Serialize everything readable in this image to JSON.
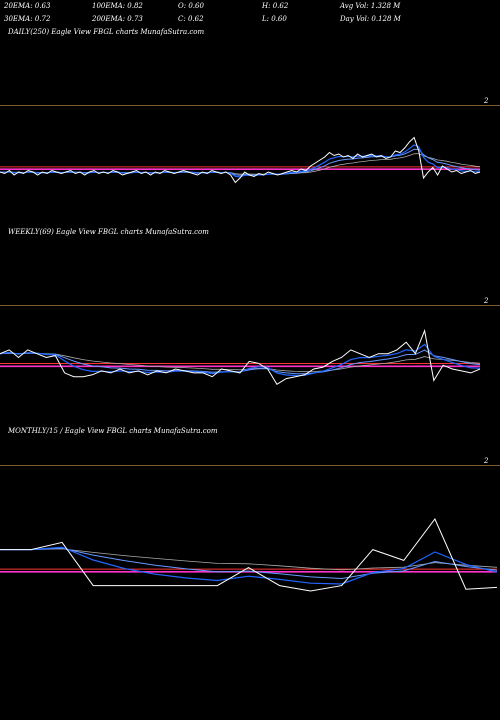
{
  "header": {
    "row1": [
      {
        "label": "20EMA: 0.63"
      },
      {
        "label": "100EMA: 0.82"
      },
      {
        "label": "O: 0.60"
      },
      {
        "label": "H: 0.62"
      },
      {
        "label": "Avg Vol: 1.328  M"
      }
    ],
    "row2": [
      {
        "label": "30EMA: 0.72"
      },
      {
        "label": "200EMA: 0.73"
      },
      {
        "label": "C: 0.62"
      },
      {
        "label": "L: 0.60"
      },
      {
        "label": "Day Vol: 0.128  M"
      }
    ]
  },
  "colors": {
    "price": "#ffffff",
    "ema_fast": "#2266ff",
    "ema_slow": "#6699ff",
    "ema_gray": "#aaaaaa",
    "ema_magenta": "#ff33cc",
    "ema_red": "#ff3333",
    "divider": "#7a5c2e",
    "background": "#000000"
  },
  "panels": [
    {
      "label": "DAILY(250) Eagle  View  FBGL  charts MunafaSutra.com",
      "scale_label": "2"
    },
    {
      "label": "WEEKLY(69) Eagle  View  FBGL  charts MunafaSutra.com",
      "scale_label": "2"
    },
    {
      "label": "MONTHLY/15                                    / Eagle  View  FBGL  charts MunafaSutra.com",
      "scale_label": "2"
    }
  ],
  "chart_data": [
    {
      "type": "line",
      "title": "DAILY(250)",
      "series": [
        {
          "values": [
            0.62,
            0.61,
            0.63,
            0.6,
            0.62,
            0.61,
            0.63,
            0.62,
            0.6,
            0.62,
            0.61,
            0.63,
            0.62,
            0.61,
            0.62,
            0.63,
            0.61,
            0.62,
            0.6,
            0.62,
            0.63,
            0.61,
            0.62,
            0.61,
            0.63,
            0.62,
            0.6,
            0.61,
            0.62,
            0.63,
            0.61,
            0.62,
            0.6,
            0.62,
            0.61,
            0.63,
            0.62,
            0.61,
            0.62,
            0.63,
            0.62,
            0.61,
            0.6,
            0.62,
            0.61,
            0.63,
            0.62,
            0.61,
            0.62,
            0.6,
            0.55,
            0.58,
            0.62,
            0.6,
            0.59,
            0.61,
            0.6,
            0.62,
            0.61,
            0.6,
            0.61,
            0.62,
            0.63,
            0.62,
            0.64,
            0.63,
            0.66,
            0.68,
            0.7,
            0.72,
            0.75,
            0.73,
            0.74,
            0.72,
            0.73,
            0.71,
            0.74,
            0.72,
            0.73,
            0.74,
            0.72,
            0.73,
            0.71,
            0.72,
            0.76,
            0.75,
            0.78,
            0.82,
            0.85,
            0.76,
            0.58,
            0.62,
            0.65,
            0.6,
            0.66,
            0.64,
            0.62,
            0.63,
            0.61,
            0.62,
            0.63,
            0.61,
            0.62
          ]
        }
      ]
    },
    {
      "type": "line",
      "title": "WEEKLY(69)",
      "series": [
        {
          "values": [
            0.7,
            0.72,
            0.68,
            0.72,
            0.7,
            0.68,
            0.69,
            0.6,
            0.58,
            0.58,
            0.59,
            0.61,
            0.6,
            0.62,
            0.6,
            0.61,
            0.59,
            0.61,
            0.6,
            0.62,
            0.61,
            0.6,
            0.6,
            0.58,
            0.62,
            0.61,
            0.6,
            0.66,
            0.65,
            0.62,
            0.54,
            0.57,
            0.58,
            0.59,
            0.62,
            0.63,
            0.66,
            0.68,
            0.72,
            0.7,
            0.68,
            0.7,
            0.7,
            0.72,
            0.76,
            0.7,
            0.82,
            0.56,
            0.64,
            0.62,
            0.61,
            0.6,
            0.62
          ]
        }
      ]
    },
    {
      "type": "line",
      "title": "MONTHLY/15",
      "series": [
        {
          "values": [
            0.78,
            0.78,
            0.82,
            0.58,
            0.58,
            0.58,
            0.58,
            0.58,
            0.68,
            0.58,
            0.55,
            0.58,
            0.78,
            0.72,
            0.95,
            0.56,
            0.57
          ]
        }
      ]
    }
  ]
}
